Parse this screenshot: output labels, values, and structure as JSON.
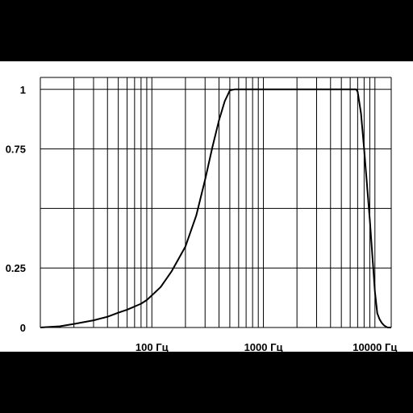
{
  "chart_data": {
    "type": "line",
    "x_scale": "log",
    "xlim": [
      10,
      14000
    ],
    "ylim": [
      0,
      1.05
    ],
    "grid": true,
    "xticks": [
      {
        "value": 100,
        "label": "100 Гц"
      },
      {
        "value": 1000,
        "label": "1000 Гц"
      },
      {
        "value": 10000,
        "label": "10000 Гц"
      }
    ],
    "yticks": [
      {
        "value": 0,
        "label": "0"
      },
      {
        "value": 0.25,
        "label": "0.25"
      },
      {
        "value": 0.75,
        "label": "0.75"
      },
      {
        "value": 1,
        "label": "1"
      }
    ],
    "series": [
      {
        "x": [
          10,
          15,
          20,
          30,
          40,
          50,
          60,
          70,
          80,
          90,
          100,
          120,
          150,
          200,
          250,
          300,
          350,
          400,
          450,
          500,
          550,
          600,
          800,
          1000,
          2000,
          4000,
          6000,
          6800,
          7000,
          7500,
          8000,
          9000,
          10000,
          10500,
          11000,
          11500,
          12000,
          12500,
          13000,
          14000
        ],
        "y": [
          0,
          0.005,
          0.015,
          0.03,
          0.045,
          0.062,
          0.075,
          0.088,
          0.1,
          0.115,
          0.135,
          0.17,
          0.235,
          0.34,
          0.47,
          0.62,
          0.76,
          0.87,
          0.95,
          0.995,
          1,
          1,
          1,
          1,
          1,
          1,
          1,
          1,
          0.99,
          0.9,
          0.75,
          0.45,
          0.15,
          0.06,
          0.035,
          0.02,
          0.01,
          0.004,
          0.0,
          0.0
        ]
      }
    ],
    "line_color": "#000000",
    "grid_color": "#000000"
  }
}
